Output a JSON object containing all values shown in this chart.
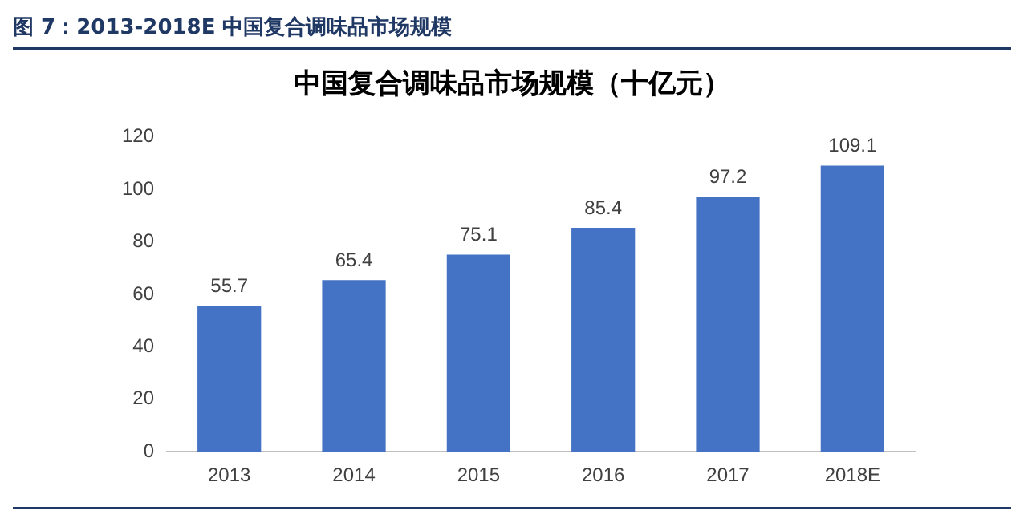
{
  "chart_data": {
    "type": "bar",
    "title": "中国复合调味品市场规模（十亿元）",
    "annotations": [
      "图 7：2013-2018E 中国复合调味品市场规模"
    ],
    "categories": [
      "2013",
      "2014",
      "2015",
      "2016",
      "2017",
      "2018E"
    ],
    "values": [
      55.7,
      65.4,
      75.1,
      85.4,
      97.2,
      109.1
    ],
    "color": "#4472c4",
    "ylim": [
      0,
      120
    ],
    "yticks": [
      0,
      20,
      40,
      60,
      80,
      100,
      120
    ],
    "grid": false,
    "legend": false,
    "data_labels": true
  }
}
